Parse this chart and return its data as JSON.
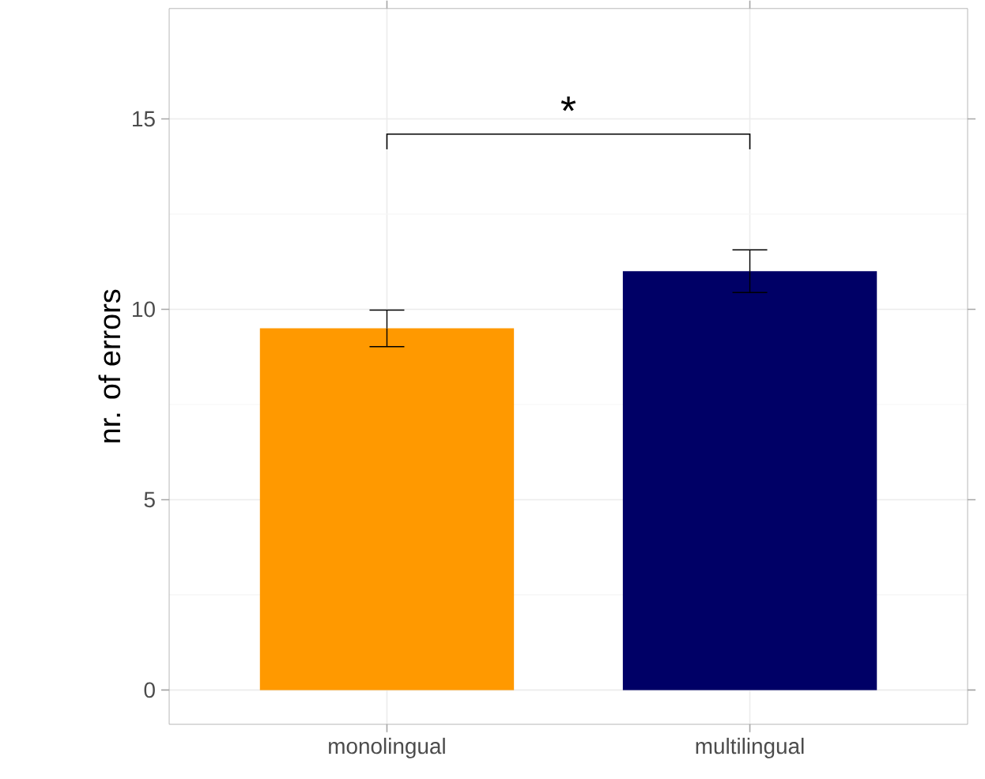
{
  "chart_data": {
    "type": "bar",
    "ylabel": "nr. of errors",
    "categories": [
      "monolingual",
      "multilingual"
    ],
    "values": [
      9.5,
      11.0
    ],
    "errors": [
      0.48,
      0.56
    ],
    "colors": [
      "#ff9900",
      "#000066"
    ],
    "ylim": [
      -0.9,
      17.9
    ],
    "yticks": [
      0,
      5,
      10,
      15
    ],
    "grid": true,
    "annotations": [
      "*"
    ]
  }
}
